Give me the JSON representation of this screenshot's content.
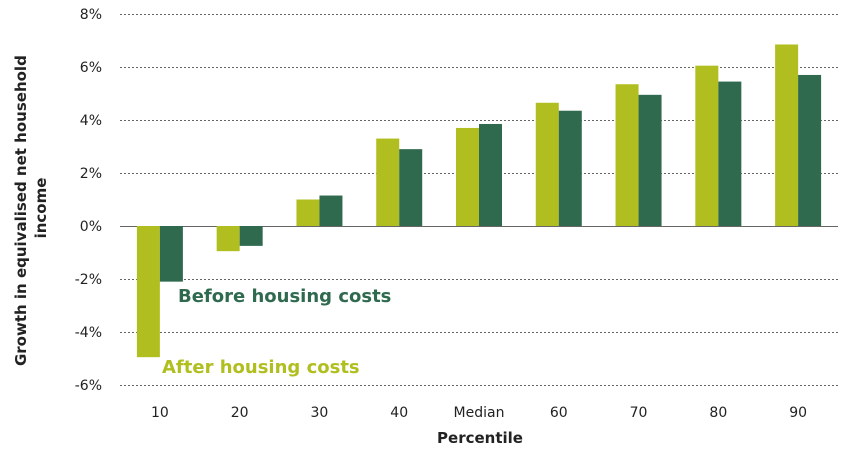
{
  "chart_data": {
    "type": "bar",
    "xlabel": "Percentile",
    "ylabel": "Growth in equivalised net household income",
    "ylim": [
      -6,
      8
    ],
    "yticks": [
      8,
      6,
      4,
      2,
      0,
      -2,
      -4,
      -6
    ],
    "ytick_labels": [
      "8%",
      "6%",
      "4%",
      "2%",
      "0%",
      "-2%",
      "-4%",
      "-6%"
    ],
    "grid": true,
    "categories": [
      "10",
      "20",
      "30",
      "40",
      "Median",
      "60",
      "70",
      "80",
      "90"
    ],
    "series": [
      {
        "name": "After housing costs",
        "color": "#b0bf1f",
        "values": [
          -4.95,
          -0.95,
          1.0,
          3.3,
          3.7,
          4.65,
          5.35,
          6.05,
          6.85
        ]
      },
      {
        "name": "Before housing costs",
        "color": "#2f6a4f",
        "values": [
          -2.1,
          -0.75,
          1.15,
          2.9,
          3.85,
          4.35,
          4.95,
          5.45,
          5.7
        ]
      }
    ]
  }
}
